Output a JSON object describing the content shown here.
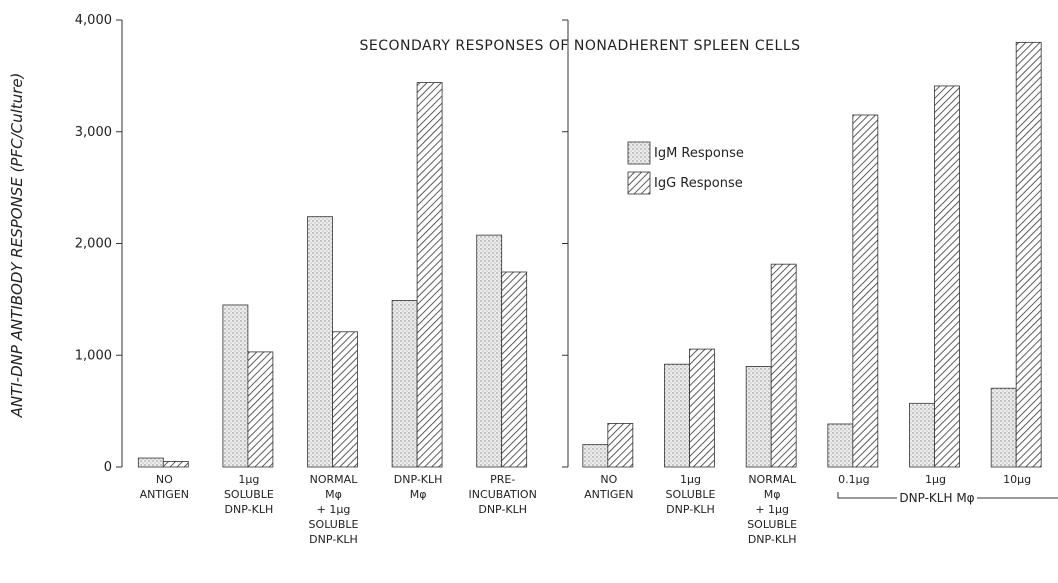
{
  "chart_data": {
    "type": "bar",
    "title": "SECONDARY RESPONSES OF NONADHERENT SPLEEN CELLS",
    "y_label": "ANTI-DNP ANTIBODY RESPONSE (PFC/Culture)",
    "ylim": [
      0,
      4000
    ],
    "yticks": [
      0,
      {
        "value": 1000,
        "label": "1,000"
      },
      {
        "value": 2000,
        "label": "2,000"
      },
      {
        "value": 3000,
        "label": "3,000"
      },
      {
        "value": 4000,
        "label": "4,000"
      }
    ],
    "legend_names": [
      "IgM Response",
      "IgG Response"
    ],
    "colors": [
      "#e6e6e6",
      "#ffffff"
    ],
    "patterns": [
      "dots",
      "hatch"
    ],
    "panels": [
      {
        "categories": [
          [
            "NO",
            "ANTIGEN"
          ],
          [
            "1µg",
            "SOLUBLE",
            "DNP-KLH"
          ],
          [
            "NORMAL",
            "Mφ",
            "+ 1µg",
            "SOLUBLE",
            "DNP-KLH"
          ],
          [
            "DNP-KLH",
            "Mφ"
          ],
          [
            "PRE-",
            "INCUBATION",
            "DNP-KLH"
          ]
        ],
        "series": [
          {
            "name": "IgM Response",
            "values": [
              80,
              1450,
              2240,
              1490,
              2075
            ]
          },
          {
            "name": "IgG Response",
            "values": [
              50,
              1030,
              1210,
              3440,
              1745
            ]
          }
        ]
      },
      {
        "categories": [
          [
            "NO",
            "ANTIGEN"
          ],
          [
            "1µg",
            "SOLUBLE",
            "DNP-KLH"
          ],
          [
            "NORMAL",
            "Mφ",
            "+ 1µg",
            "SOLUBLE",
            "DNP-KLH"
          ],
          [
            "0.1µg"
          ],
          [
            "1µg"
          ],
          [
            "10µg"
          ]
        ],
        "series": [
          {
            "name": "IgM Response",
            "values": [
              200,
              920,
              900,
              385,
              570,
              705
            ]
          },
          {
            "name": "IgG Response",
            "values": [
              390,
              1055,
              1815,
              3150,
              3410,
              3800
            ]
          }
        ]
      }
    ],
    "bracket_label": "DNP-KLH Mφ"
  }
}
